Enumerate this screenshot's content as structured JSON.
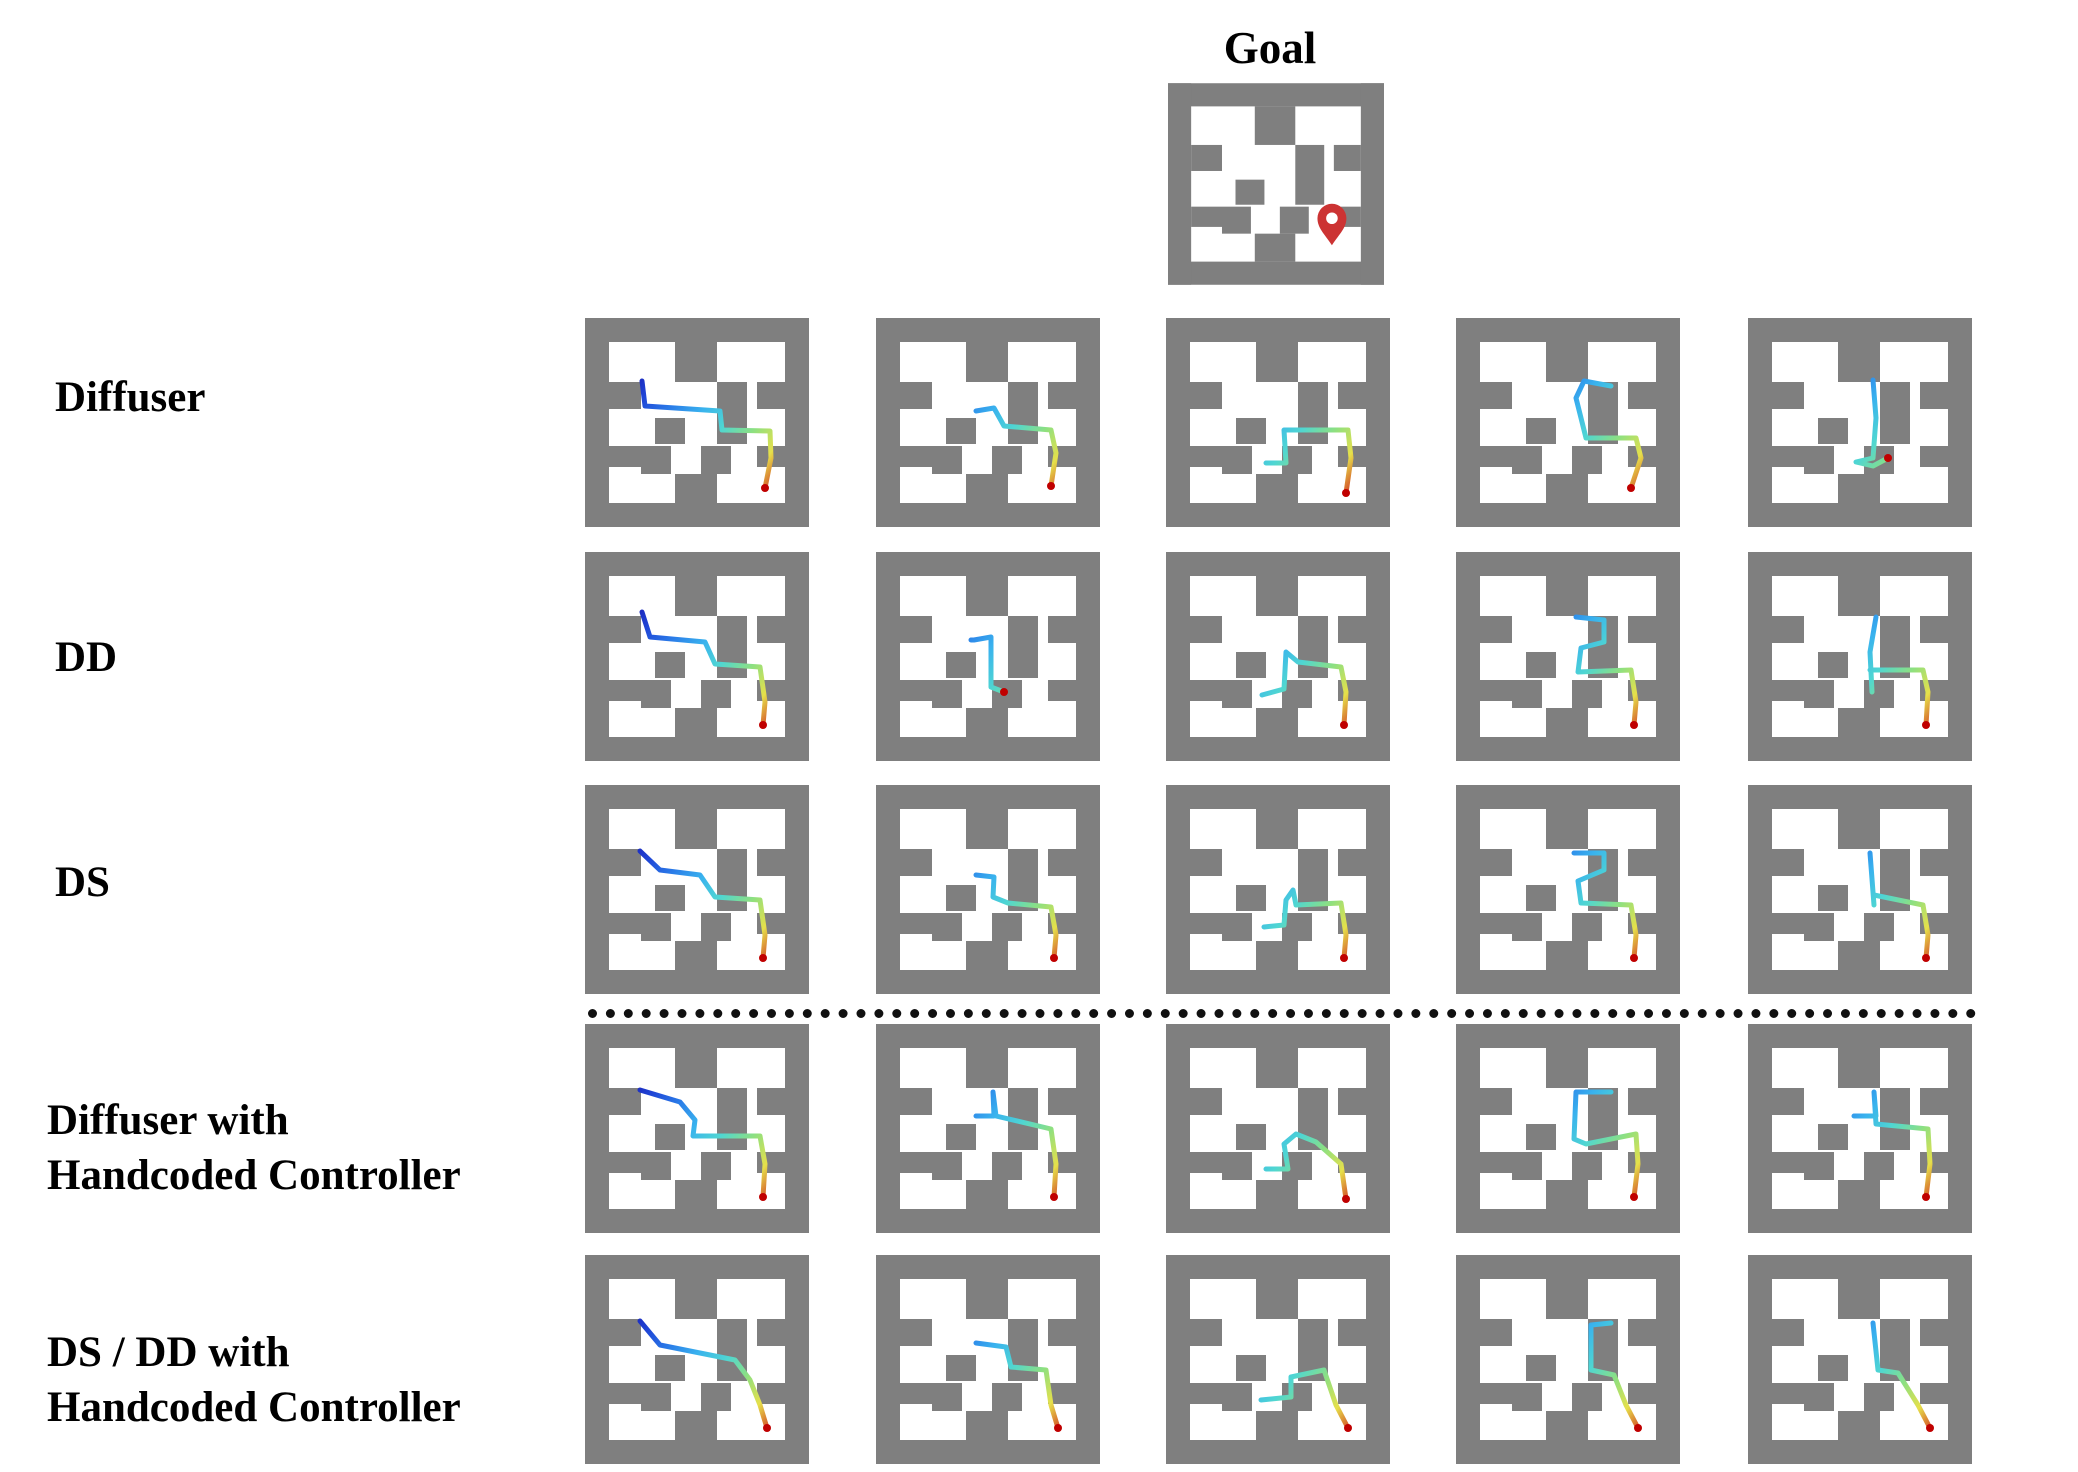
{
  "goal": {
    "title": "Goal",
    "marker_icon": "location-pin-icon",
    "marker_color": "#cc3333"
  },
  "rows": [
    {
      "label_lines": [
        "Diffuser"
      ]
    },
    {
      "label_lines": [
        "DD"
      ]
    },
    {
      "label_lines": [
        "DS"
      ]
    },
    {
      "label_lines": [
        "Diffuser with",
        "Handcoded Controller"
      ]
    },
    {
      "label_lines": [
        "DS / DD with",
        "Handcoded Controller"
      ]
    }
  ],
  "colors": {
    "wall": "#7f7f7f",
    "floor": "#ffffff",
    "trajectory_start": "#1010a8",
    "trajectory_end": "#c00000"
  }
}
